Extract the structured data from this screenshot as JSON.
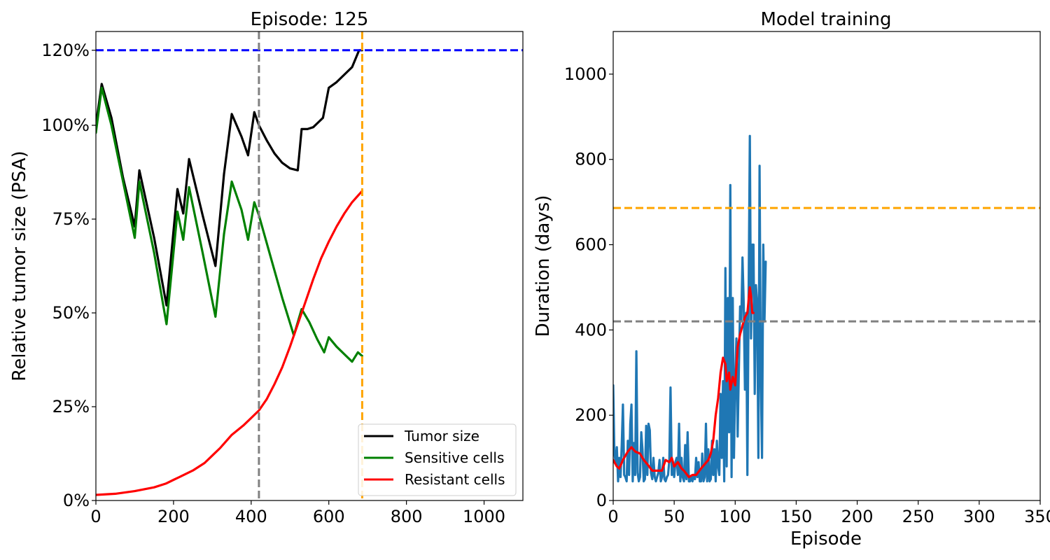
{
  "chart_data": [
    {
      "type": "line",
      "title": "Episode: 125",
      "xlabel": "",
      "ylabel": "Relative tumor size (PSA)",
      "xlim": [
        0,
        1100
      ],
      "ylim": [
        0,
        1.25
      ],
      "x_ticks": [
        0,
        200,
        400,
        600,
        800,
        1000
      ],
      "x_tick_labels": [
        "0",
        "200",
        "400",
        "600",
        "800",
        "1000"
      ],
      "y_ticks": [
        0,
        0.25,
        0.5,
        0.75,
        1.0,
        1.2
      ],
      "y_tick_labels": [
        "0%",
        "25%",
        "50%",
        "75%",
        "100%",
        "120%"
      ],
      "grid": false,
      "legend": {
        "placement": "lower-right",
        "entries": [
          "Tumor size",
          "Sensitive cells",
          "Resistant cells"
        ]
      },
      "hlines": [
        {
          "y": 1.2,
          "color": "#0000ff",
          "style": "dashed"
        }
      ],
      "vlines": [
        {
          "x": 420,
          "color": "#808080",
          "style": "dashed"
        },
        {
          "x": 686,
          "color": "#ffa500",
          "style": "dashed"
        }
      ],
      "series": [
        {
          "name": "Tumor size",
          "color": "#000000",
          "x": [
            0,
            15,
            40,
            70,
            100,
            112,
            150,
            182,
            210,
            225,
            240,
            275,
            308,
            330,
            350,
            375,
            392,
            408,
            420,
            440,
            460,
            480,
            500,
            520,
            530,
            545,
            560,
            575,
            585,
            600,
            620,
            640,
            660,
            678,
            686
          ],
          "y": [
            1.0,
            1.11,
            1.02,
            0.86,
            0.73,
            0.88,
            0.7,
            0.52,
            0.83,
            0.765,
            0.91,
            0.76,
            0.625,
            0.87,
            1.03,
            0.97,
            0.92,
            1.035,
            1.0,
            0.96,
            0.925,
            0.9,
            0.885,
            0.88,
            0.99,
            0.99,
            0.995,
            1.01,
            1.02,
            1.1,
            1.115,
            1.135,
            1.155,
            1.2,
            1.2
          ]
        },
        {
          "name": "Sensitive cells",
          "color": "#008000",
          "x": [
            0,
            15,
            40,
            70,
            100,
            112,
            150,
            182,
            210,
            225,
            240,
            275,
            308,
            330,
            350,
            375,
            392,
            408,
            420,
            450,
            480,
            510,
            530,
            550,
            570,
            588,
            600,
            620,
            640,
            660,
            675,
            686
          ],
          "y": [
            0.98,
            1.1,
            1.0,
            0.85,
            0.7,
            0.85,
            0.66,
            0.47,
            0.77,
            0.695,
            0.835,
            0.66,
            0.49,
            0.71,
            0.85,
            0.775,
            0.695,
            0.795,
            0.76,
            0.65,
            0.54,
            0.44,
            0.51,
            0.475,
            0.43,
            0.395,
            0.435,
            0.41,
            0.39,
            0.37,
            0.395,
            0.385
          ]
        },
        {
          "name": "Resistant cells",
          "color": "#ff0000",
          "x": [
            0,
            50,
            100,
            150,
            180,
            200,
            220,
            250,
            280,
            300,
            320,
            350,
            380,
            400,
            420,
            440,
            460,
            480,
            500,
            520,
            540,
            560,
            580,
            600,
            620,
            640,
            660,
            686
          ],
          "y": [
            0.015,
            0.018,
            0.025,
            0.035,
            0.045,
            0.055,
            0.065,
            0.08,
            0.1,
            0.12,
            0.14,
            0.175,
            0.2,
            0.22,
            0.24,
            0.27,
            0.31,
            0.355,
            0.41,
            0.47,
            0.53,
            0.59,
            0.645,
            0.69,
            0.73,
            0.765,
            0.795,
            0.825
          ]
        }
      ]
    },
    {
      "type": "line",
      "title": "Model training",
      "xlabel": "Episode",
      "ylabel": "Duration (days)",
      "xlim": [
        0,
        350
      ],
      "ylim": [
        0,
        1100
      ],
      "x_ticks": [
        0,
        50,
        100,
        150,
        200,
        250,
        300,
        350
      ],
      "x_tick_labels": [
        "0",
        "50",
        "100",
        "150",
        "200",
        "250",
        "300",
        "350"
      ],
      "y_ticks": [
        0,
        200,
        400,
        600,
        800,
        1000
      ],
      "y_tick_labels": [
        "0",
        "200",
        "400",
        "600",
        "800",
        "1000"
      ],
      "grid": false,
      "hlines": [
        {
          "y": 686,
          "color": "#ffa500",
          "style": "dashed"
        },
        {
          "y": 420,
          "color": "#808080",
          "style": "dashed"
        }
      ],
      "series": [
        {
          "color": "#1f77b4",
          "x": [
            0,
            1,
            2,
            3,
            4,
            5,
            6,
            7,
            8,
            9,
            10,
            11,
            12,
            13,
            14,
            15,
            16,
            17,
            18,
            19,
            20,
            21,
            22,
            23,
            24,
            25,
            26,
            27,
            28,
            29,
            30,
            31,
            32,
            33,
            34,
            35,
            36,
            37,
            38,
            39,
            40,
            41,
            42,
            43,
            44,
            45,
            46,
            47,
            48,
            49,
            50,
            51,
            52,
            53,
            54,
            55,
            56,
            57,
            58,
            59,
            60,
            61,
            62,
            63,
            64,
            65,
            66,
            67,
            68,
            69,
            70,
            71,
            72,
            73,
            74,
            75,
            76,
            77,
            78,
            79,
            80,
            81,
            82,
            83,
            84,
            85,
            86,
            87,
            88,
            89,
            90,
            91,
            92,
            93,
            94,
            95,
            96,
            97,
            98,
            99,
            100,
            101,
            102,
            103,
            104,
            105,
            106,
            107,
            108,
            109,
            110,
            111,
            112,
            113,
            114,
            115,
            116,
            117,
            118,
            119,
            120,
            121,
            122,
            123,
            124,
            125
          ],
          "y": [
            270,
            110,
            90,
            125,
            45,
            100,
            55,
            130,
            225,
            60,
            55,
            45,
            140,
            60,
            180,
            225,
            45,
            135,
            60,
            350,
            65,
            45,
            55,
            160,
            120,
            45,
            50,
            175,
            60,
            180,
            165,
            65,
            50,
            100,
            55,
            45,
            55,
            65,
            95,
            45,
            55,
            100,
            50,
            45,
            55,
            60,
            95,
            265,
            60,
            85,
            55,
            90,
            100,
            60,
            180,
            45,
            100,
            55,
            45,
            130,
            50,
            160,
            45,
            45,
            55,
            45,
            60,
            50,
            100,
            55,
            90,
            45,
            45,
            110,
            45,
            55,
            180,
            45,
            120,
            45,
            50,
            140,
            60,
            120,
            45,
            140,
            80,
            60,
            250,
            100,
            280,
            45,
            545,
            80,
            475,
            160,
            740,
            55,
            475,
            100,
            280,
            380,
            150,
            305,
            455,
            420,
            570,
            460,
            260,
            440,
            60,
            490,
            855,
            380,
            600,
            600,
            250,
            505,
            460,
            100,
            785,
            280,
            100,
            600,
            420,
            560
          ]
        },
        {
          "color": "#ff0000",
          "x": [
            0,
            3,
            5,
            8,
            12,
            15,
            18,
            22,
            25,
            28,
            32,
            36,
            40,
            43,
            46,
            48,
            50,
            53,
            56,
            58,
            62,
            65,
            68,
            72,
            75,
            78,
            80,
            82,
            84,
            86,
            88,
            90,
            92,
            93,
            95,
            96,
            98,
            100,
            102,
            104,
            106,
            108,
            110,
            112,
            113,
            114,
            115
          ],
          "y": [
            95,
            80,
            75,
            95,
            115,
            125,
            115,
            110,
            95,
            85,
            70,
            70,
            70,
            95,
            90,
            100,
            80,
            90,
            75,
            70,
            55,
            60,
            60,
            75,
            85,
            95,
            110,
            140,
            200,
            240,
            300,
            335,
            320,
            280,
            300,
            260,
            290,
            270,
            360,
            390,
            410,
            430,
            440,
            500,
            480,
            440,
            440
          ]
        }
      ]
    }
  ]
}
